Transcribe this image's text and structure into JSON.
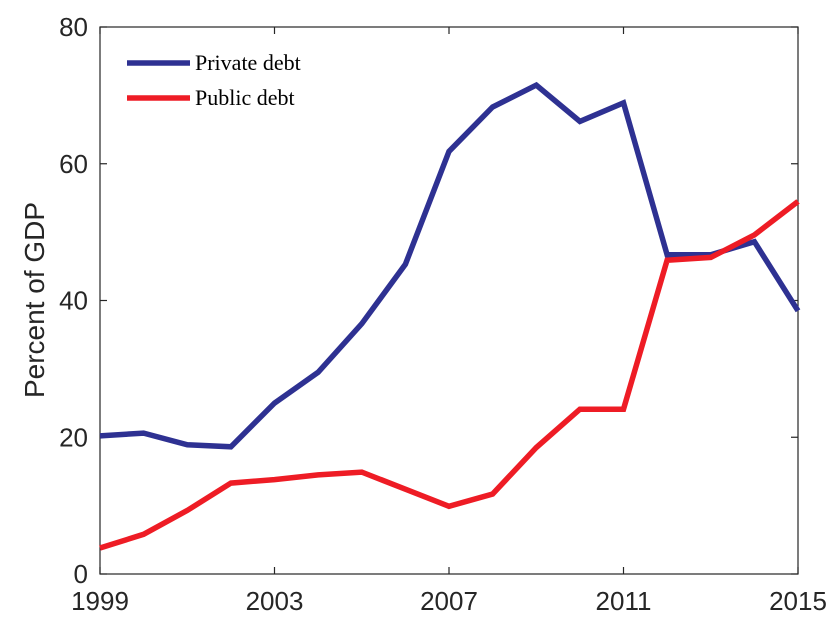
{
  "chart_data": {
    "type": "line",
    "title": "",
    "xlabel": "",
    "ylabel": "Percent of GDP",
    "xlim": [
      1999,
      2015
    ],
    "ylim": [
      0,
      80
    ],
    "xticks": [
      1999,
      2003,
      2007,
      2011,
      2015
    ],
    "yticks": [
      0,
      20,
      40,
      60,
      80
    ],
    "grid": false,
    "legend_position": "top-left",
    "x": [
      1999,
      2000,
      2001,
      2002,
      2003,
      2004,
      2005,
      2006,
      2007,
      2008,
      2009,
      2010,
      2011,
      2012,
      2013,
      2014,
      2015
    ],
    "series": [
      {
        "name": "Private debt",
        "color": "#2e3192",
        "values": [
          20.2,
          20.6,
          18.9,
          18.6,
          25.0,
          29.5,
          36.6,
          45.3,
          61.8,
          68.3,
          71.5,
          66.2,
          68.9,
          46.7,
          46.7,
          48.6,
          38.5
        ]
      },
      {
        "name": "Public debt",
        "color": "#ee1c25",
        "values": [
          3.8,
          5.8,
          9.3,
          13.3,
          13.8,
          14.5,
          14.9,
          12.4,
          9.9,
          11.7,
          18.5,
          24.1,
          24.1,
          45.9,
          46.3,
          49.6,
          54.5
        ]
      }
    ]
  }
}
